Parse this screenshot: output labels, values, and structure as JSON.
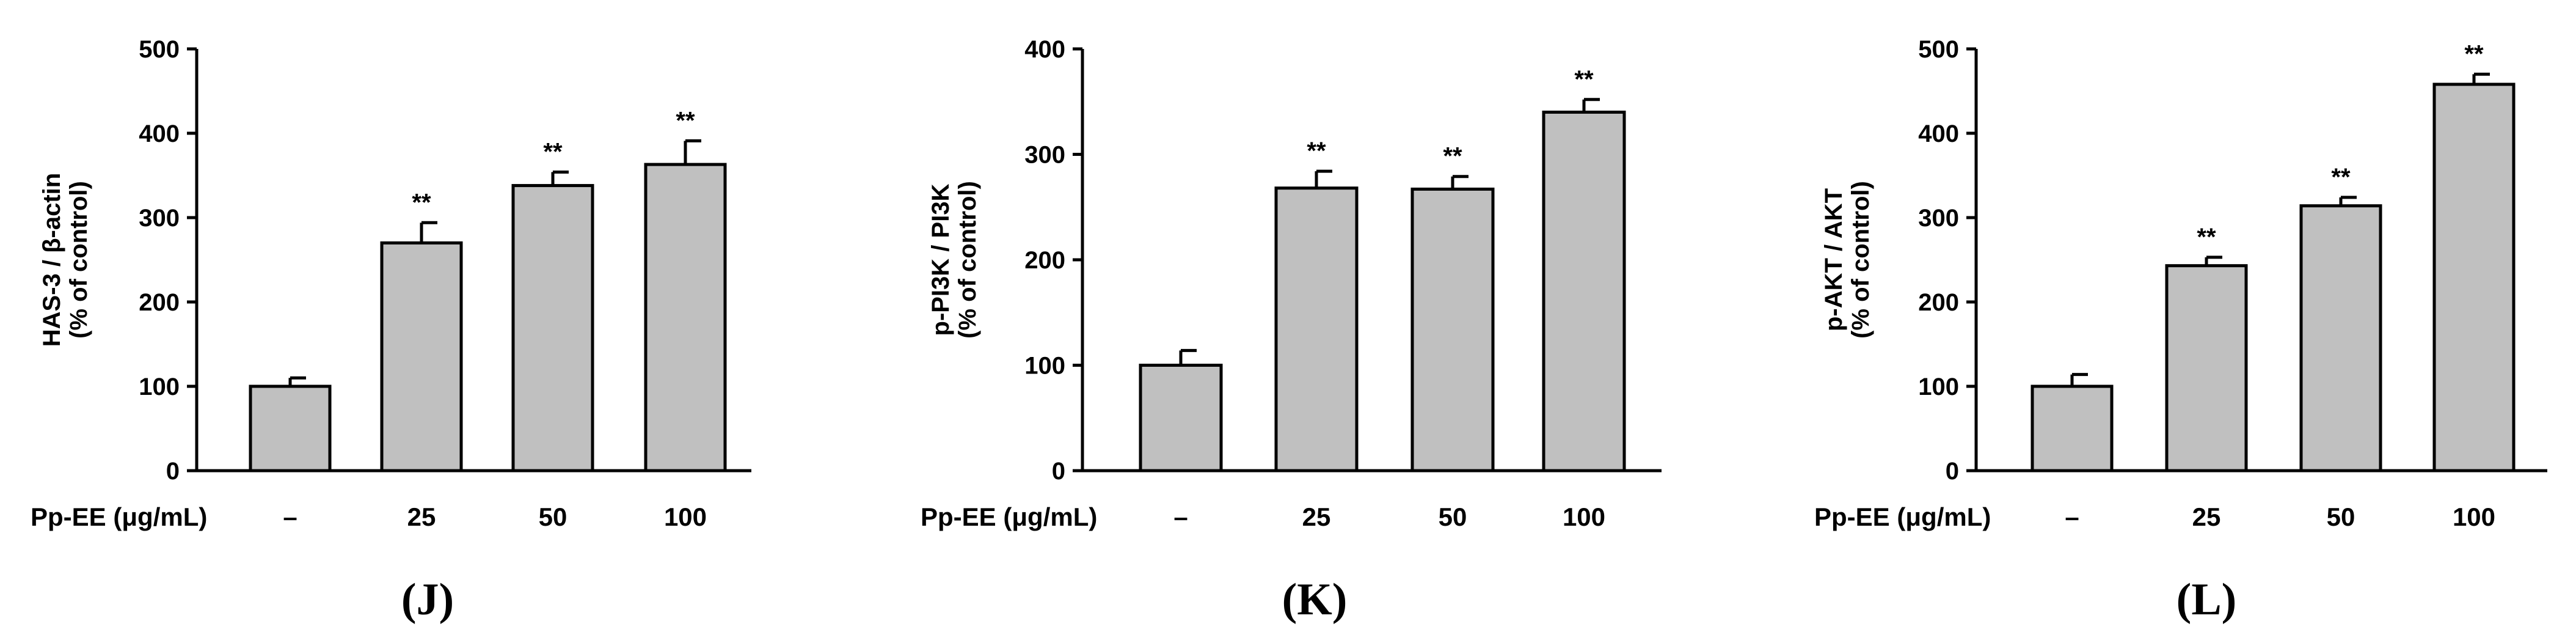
{
  "colors": {
    "bar_fill": "#c0c0c0",
    "stroke": "#000000",
    "background": "#ffffff"
  },
  "chart_data": [
    {
      "type": "bar",
      "panel_label": "(J)",
      "ylabel_lines": [
        "HAS-3 / β-actin",
        "(% of control)"
      ],
      "xlabel": "Pp-EE (μg/mL)",
      "categories": [
        "–",
        "25",
        "50",
        "100"
      ],
      "values": [
        100,
        270,
        338,
        363
      ],
      "errors": [
        10,
        24,
        16,
        28
      ],
      "significance": [
        "",
        "**",
        "**",
        "**"
      ],
      "ylim": [
        0,
        500
      ],
      "yticks": [
        "0",
        "100",
        "200",
        "300",
        "400",
        "500"
      ],
      "grid": false,
      "legend": "none"
    },
    {
      "type": "bar",
      "panel_label": "(K)",
      "ylabel_lines": [
        "p-PI3K / PI3K",
        "(% of control)"
      ],
      "xlabel": "Pp-EE (μg/mL)",
      "categories": [
        "–",
        "25",
        "50",
        "100"
      ],
      "values": [
        100,
        268,
        267,
        340
      ],
      "errors": [
        14,
        16,
        12,
        12
      ],
      "significance": [
        "",
        "**",
        "**",
        "**"
      ],
      "ylim": [
        0,
        400
      ],
      "yticks": [
        "0",
        "100",
        "200",
        "300",
        "400"
      ],
      "grid": false,
      "legend": "none"
    },
    {
      "type": "bar",
      "panel_label": "(L)",
      "ylabel_lines": [
        "p-AKT / AKT",
        "(% of control)"
      ],
      "xlabel": "Pp-EE (μg/mL)",
      "categories": [
        "–",
        "25",
        "50",
        "100"
      ],
      "values": [
        100,
        243,
        314,
        458
      ],
      "errors": [
        14,
        10,
        10,
        12
      ],
      "significance": [
        "",
        "**",
        "**",
        "**"
      ],
      "ylim": [
        0,
        500
      ],
      "yticks": [
        "0",
        "100",
        "200",
        "300",
        "400",
        "500"
      ],
      "grid": false,
      "legend": "none"
    }
  ]
}
